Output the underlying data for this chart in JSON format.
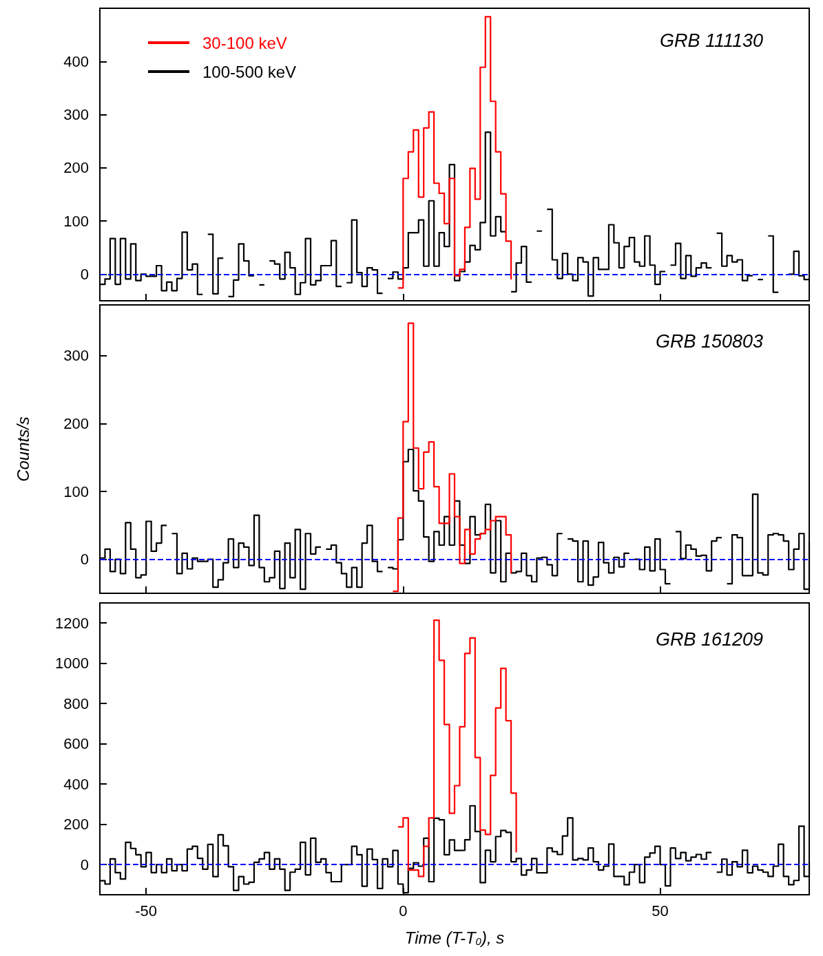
{
  "chart_data": [
    {
      "type": "step",
      "title": "GRB 111130",
      "xlim": [
        -59,
        79
      ],
      "xticks": [
        -50,
        0,
        50
      ],
      "ylim": [
        -50,
        500
      ],
      "yticks": [
        0,
        100,
        200,
        300,
        400
      ],
      "tick_labels": "y",
      "grid": false,
      "legend": "top left",
      "x": [
        -59,
        -58,
        -57,
        -56,
        -55,
        -54,
        -53,
        -52,
        -51,
        -50,
        -49,
        -48,
        -47,
        -46,
        -45,
        -44,
        -43,
        -42,
        -41,
        -40,
        -39,
        -38,
        -37,
        -36,
        -35,
        -34,
        -33,
        -32,
        -31,
        -30,
        -29,
        -28,
        -27,
        -26,
        -25,
        -24,
        -23,
        -22,
        -21,
        -20,
        -19,
        -18,
        -17,
        -16,
        -15,
        -14,
        -13,
        -12,
        -11,
        -10,
        -9,
        -8,
        -7,
        -6,
        -5,
        -4,
        -3,
        -2,
        -1,
        0,
        1,
        2,
        3,
        4,
        5,
        6,
        7,
        8,
        9,
        10,
        11,
        12,
        13,
        14,
        15,
        16,
        17,
        18,
        19,
        20,
        21,
        22,
        23,
        24,
        25,
        26,
        27,
        28,
        29,
        30,
        31,
        32,
        33,
        34,
        35,
        36,
        37,
        38,
        39,
        40,
        41,
        42,
        43,
        44,
        45,
        46,
        47,
        48,
        49,
        50,
        51,
        52,
        53,
        54,
        55,
        56,
        57,
        58,
        59,
        60,
        61,
        62,
        63,
        64,
        65,
        66,
        67,
        68,
        69,
        70,
        71,
        72,
        73,
        74,
        75,
        76,
        77,
        78,
        79
      ],
      "ref_lines": [
        {
          "axis": "y",
          "value": 0,
          "color": "#0000ff",
          "line_style": "dashed"
        }
      ],
      "series": [
        {
          "name": "30-100 keV",
          "color": "#ff0000",
          "x": [
            -1,
            0,
            1,
            2,
            3,
            4,
            5,
            6,
            7,
            8,
            9,
            10,
            11,
            12,
            13,
            14,
            15,
            16,
            17,
            18,
            19,
            20,
            21
          ],
          "values": [
            -26,
            180,
            230,
            271,
            145,
            275,
            305,
            171,
            152,
            95,
            180,
            -3,
            9,
            88,
            199,
            141,
            389,
            484,
            325,
            230,
            151,
            62,
            -10
          ]
        },
        {
          "name": "100-500 keV",
          "color": "#000000",
          "values": [
            -19,
            -9,
            67,
            -19,
            67,
            -9,
            57,
            -12,
            0,
            -4,
            -4,
            16,
            -31,
            -15,
            -31,
            -8,
            79,
            8,
            19,
            -38,
            null,
            75,
            -37,
            30,
            null,
            -42,
            -11,
            57,
            25,
            -3,
            null,
            -20,
            null,
            25,
            19,
            -9,
            41,
            12,
            -38,
            -16,
            67,
            -20,
            -12,
            16,
            16,
            63,
            -23,
            null,
            -16,
            102,
            3,
            -23,
            12,
            8,
            -36,
            null,
            -8,
            4,
            -9,
            12,
            78,
            78,
            102,
            15,
            138,
            15,
            78,
            52,
            206,
            -12,
            5,
            23,
            54,
            46,
            97,
            267,
            72,
            108,
            80,
            null,
            -33,
            21,
            52,
            -15,
            null,
            81,
            null,
            122,
            27,
            -8,
            39,
            0,
            -12,
            31,
            23,
            -41,
            31,
            9,
            9,
            93,
            59,
            12,
            52,
            69,
            23,
            15,
            72,
            17,
            -19,
            5,
            null,
            17,
            58,
            -8,
            35,
            -4,
            12,
            21,
            12,
            null,
            77,
            15,
            35,
            23,
            27,
            -12,
            -3,
            null,
            -10,
            null,
            72,
            -34,
            null,
            null,
            0,
            43,
            -3,
            -10,
            -10
          ]
        }
      ]
    },
    {
      "type": "step",
      "title": "GRB 150803",
      "ylabel": "Counts/s",
      "xlim": [
        -59,
        79
      ],
      "xticks": [
        -50,
        0,
        50
      ],
      "ylim": [
        -50,
        375
      ],
      "yticks": [
        0,
        100,
        200,
        300
      ],
      "tick_labels": "y",
      "grid": false,
      "x": [
        -59,
        -58,
        -57,
        -56,
        -55,
        -54,
        -53,
        -52,
        -51,
        -50,
        -49,
        -48,
        -47,
        -46,
        -45,
        -44,
        -43,
        -42,
        -41,
        -40,
        -39,
        -38,
        -37,
        -36,
        -35,
        -34,
        -33,
        -32,
        -31,
        -30,
        -29,
        -28,
        -27,
        -26,
        -25,
        -24,
        -23,
        -22,
        -21,
        -20,
        -19,
        -18,
        -17,
        -16,
        -15,
        -14,
        -13,
        -12,
        -11,
        -10,
        -9,
        -8,
        -7,
        -6,
        -5,
        -4,
        -3,
        -2,
        -1,
        0,
        1,
        2,
        3,
        4,
        5,
        6,
        7,
        8,
        9,
        10,
        11,
        12,
        13,
        14,
        15,
        16,
        17,
        18,
        19,
        20,
        21,
        22,
        23,
        24,
        25,
        26,
        27,
        28,
        29,
        30,
        31,
        32,
        33,
        34,
        35,
        36,
        37,
        38,
        39,
        40,
        41,
        42,
        43,
        44,
        45,
        46,
        47,
        48,
        49,
        50,
        51,
        52,
        53,
        54,
        55,
        56,
        57,
        58,
        59,
        60,
        61,
        62,
        63,
        64,
        65,
        66,
        67,
        68,
        69,
        70,
        71,
        72,
        73,
        74,
        75,
        76,
        77,
        78,
        79
      ],
      "ref_lines": [
        {
          "axis": "y",
          "value": 0,
          "color": "#0000ff",
          "line_style": "dashed"
        }
      ],
      "series": [
        {
          "color": "#ff0000",
          "x": [
            -2,
            -1,
            0,
            1,
            2,
            3,
            4,
            5,
            6,
            7,
            8,
            9,
            10,
            11,
            12,
            13,
            14,
            15,
            16,
            17,
            18,
            19,
            20,
            21
          ],
          "values": [
            -47,
            61,
            203,
            348,
            164,
            104,
            158,
            173,
            107,
            53,
            53,
            126,
            63,
            -6,
            44,
            8,
            30,
            38,
            44,
            57,
            63,
            63,
            36,
            -20
          ]
        },
        {
          "color": "#000000",
          "values": [
            2,
            15,
            -18,
            0,
            -21,
            54,
            15,
            -27,
            -23,
            56,
            12,
            24,
            50,
            null,
            38,
            -21,
            9,
            -14,
            2,
            -3,
            -3,
            0,
            -41,
            -30,
            -5,
            30,
            -12,
            24,
            18,
            -9,
            65,
            -12,
            -33,
            -27,
            12,
            -43,
            24,
            -27,
            44,
            -44,
            38,
            8,
            18,
            null,
            15,
            21,
            -5,
            -21,
            -41,
            -12,
            -41,
            24,
            50,
            -3,
            -18,
            null,
            -12,
            -14,
            29,
            144,
            162,
            101,
            86,
            33,
            -3,
            41,
            21,
            63,
            21,
            86,
            21,
            -6,
            63,
            36,
            38,
            81,
            -20,
            57,
            -33,
            9,
            -20,
            -18,
            9,
            -24,
            -33,
            2,
            3,
            -8,
            -24,
            38,
            null,
            30,
            27,
            -33,
            27,
            -38,
            -26,
            25,
            -5,
            -20,
            3,
            -11,
            9,
            null,
            0,
            -15,
            18,
            -17,
            30,
            -15,
            -36,
            null,
            41,
            1,
            21,
            15,
            5,
            6,
            -17,
            27,
            32,
            null,
            -36,
            36,
            32,
            -24,
            -24,
            96,
            -20,
            -23,
            36,
            38,
            36,
            27,
            -15,
            15,
            38,
            -44,
            25
          ]
        }
      ]
    },
    {
      "type": "step",
      "title": "GRB 161209",
      "xlabel": "Time (T-T$_{0}$), s",
      "xlim": [
        -59,
        79
      ],
      "xticks": [
        -50,
        0,
        50
      ],
      "ylim": [
        -150,
        1300
      ],
      "yticks": [
        0,
        200,
        400,
        600,
        800,
        1000,
        1200
      ],
      "grid": false,
      "x": [
        -59,
        -58,
        -57,
        -56,
        -55,
        -54,
        -53,
        -52,
        -51,
        -50,
        -49,
        -48,
        -47,
        -46,
        -45,
        -44,
        -43,
        -42,
        -41,
        -40,
        -39,
        -38,
        -37,
        -36,
        -35,
        -34,
        -33,
        -32,
        -31,
        -30,
        -29,
        -28,
        -27,
        -26,
        -25,
        -24,
        -23,
        -22,
        -21,
        -20,
        -19,
        -18,
        -17,
        -16,
        -15,
        -14,
        -13,
        -12,
        -11,
        -10,
        -9,
        -8,
        -7,
        -6,
        -5,
        -4,
        -3,
        -2,
        -1,
        0,
        1,
        2,
        3,
        4,
        5,
        6,
        7,
        8,
        9,
        10,
        11,
        12,
        13,
        14,
        15,
        16,
        17,
        18,
        19,
        20,
        21,
        22,
        23,
        24,
        25,
        26,
        27,
        28,
        29,
        30,
        31,
        32,
        33,
        34,
        35,
        36,
        37,
        38,
        39,
        40,
        41,
        42,
        43,
        44,
        45,
        46,
        47,
        48,
        49,
        50,
        51,
        52,
        53,
        54,
        55,
        56,
        57,
        58,
        59,
        60,
        61,
        62,
        63,
        64,
        65,
        66,
        67,
        68,
        69,
        70,
        71,
        72,
        73,
        74,
        75,
        76,
        77,
        78,
        79
      ],
      "ref_lines": [
        {
          "axis": "y",
          "value": 0,
          "color": "#0000ff",
          "line_style": "dashed"
        }
      ],
      "series": [
        {
          "color": "#ff0000",
          "x": [
            -1,
            0,
            1,
            2,
            3,
            4,
            5,
            6,
            7,
            8,
            9,
            10,
            11,
            12,
            13,
            14,
            15,
            16,
            17,
            18,
            19,
            20,
            21,
            22
          ],
          "values": [
            187,
            232,
            -27,
            -27,
            -59,
            91,
            232,
            1214,
            1015,
            696,
            255,
            392,
            685,
            1049,
            1126,
            532,
            171,
            150,
            443,
            778,
            975,
            715,
            355,
            60
          ]
        },
        {
          "color": "#000000",
          "values": [
            -80,
            -97,
            28,
            -40,
            -72,
            110,
            80,
            49,
            -11,
            60,
            -40,
            0,
            -40,
            28,
            -31,
            0,
            -31,
            77,
            91,
            31,
            -23,
            100,
            -60,
            148,
            93,
            -11,
            -128,
            -60,
            -97,
            -88,
            11,
            28,
            60,
            -23,
            28,
            -23,
            -128,
            -38,
            -23,
            110,
            -51,
            131,
            11,
            28,
            -40,
            -85,
            -85,
            0,
            0,
            91,
            49,
            -108,
            77,
            25,
            -119,
            28,
            -11,
            70,
            -97,
            -140,
            -19,
            9,
            -8,
            131,
            -85,
            230,
            222,
            49,
            122,
            70,
            71,
            123,
            292,
            164,
            -90,
            71,
            14,
            139,
            169,
            160,
            14,
            30,
            -52,
            -27,
            30,
            -41,
            -41,
            82,
            64,
            50,
            142,
            232,
            23,
            30,
            23,
            82,
            14,
            -27,
            -8,
            102,
            -59,
            -59,
            -100,
            -38,
            0,
            -90,
            37,
            57,
            91,
            0,
            -106,
            82,
            30,
            60,
            19,
            37,
            50,
            27,
            60,
            null,
            -38,
            27,
            -52,
            14,
            -11,
            71,
            -41,
            -8,
            -27,
            -38,
            -59,
            -8,
            101,
            -59,
            -100,
            -79,
            191,
            -59,
            14
          ]
        }
      ]
    }
  ]
}
